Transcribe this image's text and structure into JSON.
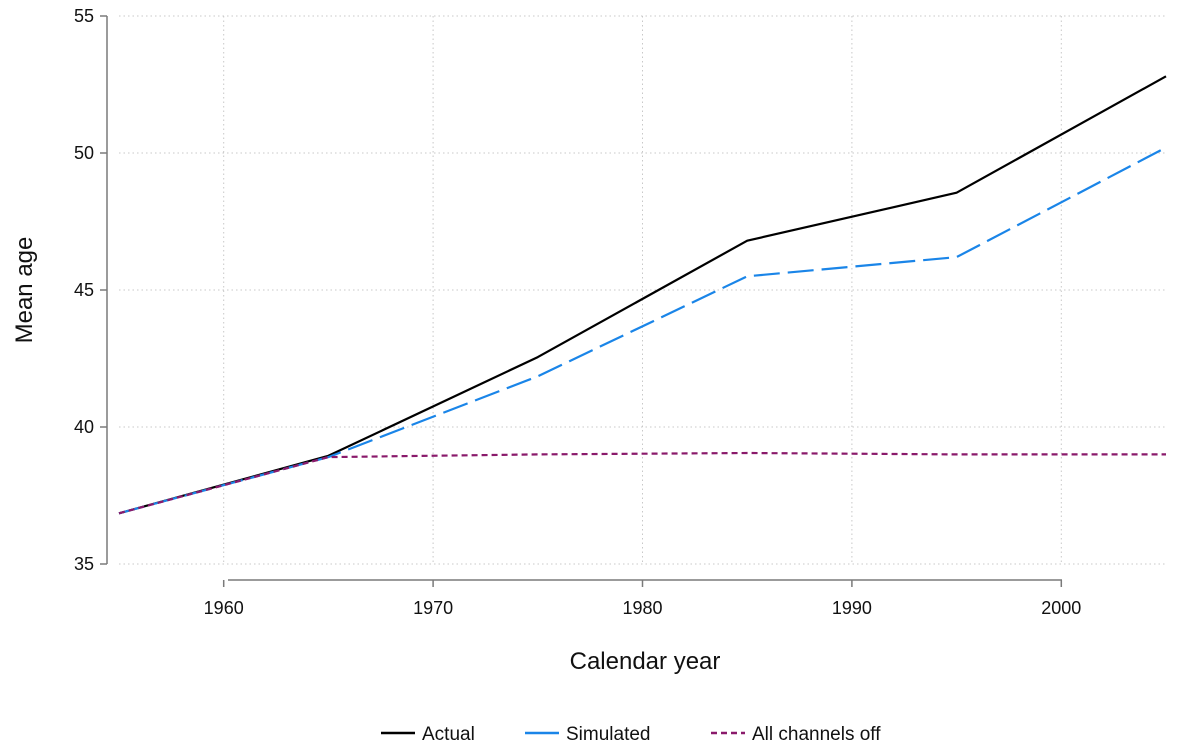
{
  "chart_data": {
    "type": "line",
    "title": "",
    "xlabel": "Calendar year",
    "ylabel": "Mean age",
    "xlim": [
      1955,
      2005
    ],
    "ylim": [
      35,
      55
    ],
    "xticks": [
      1960,
      1970,
      1980,
      1990,
      2000
    ],
    "yticks": [
      35,
      40,
      45,
      50,
      55
    ],
    "grid": true,
    "legend_position": "bottom",
    "x": [
      1955,
      1965,
      1975,
      1985,
      1995,
      2005
    ],
    "series": [
      {
        "name": "Actual",
        "color": "#000000",
        "style": "solid",
        "values": [
          36.85,
          38.95,
          42.55,
          46.8,
          48.55,
          52.8
        ]
      },
      {
        "name": "Simulated",
        "color": "#1a85e8",
        "style": "longdash",
        "values": [
          36.85,
          38.9,
          41.85,
          45.5,
          46.2,
          50.2
        ]
      },
      {
        "name": "All channels off",
        "color": "#8a1a6b",
        "style": "shortdash",
        "values": [
          36.85,
          38.9,
          39.0,
          39.05,
          39.0,
          39.0
        ]
      }
    ]
  }
}
